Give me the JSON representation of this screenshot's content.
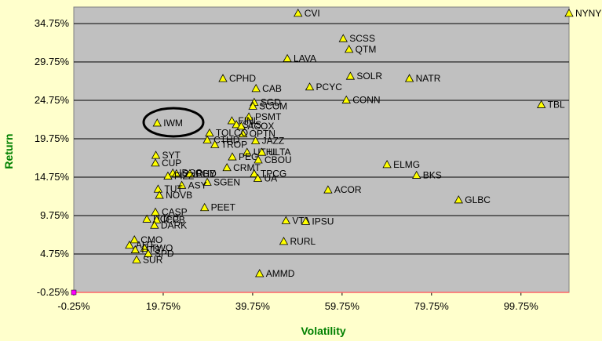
{
  "chart_data": {
    "type": "scatter",
    "title": "",
    "xlabel": "Volatility",
    "ylabel": "Return",
    "xlim": [
      -0.25,
      110.5
    ],
    "ylim": [
      -0.25,
      36.9
    ],
    "x_ticks": [
      "-0.25%",
      "19.75%",
      "39.75%",
      "59.75%",
      "79.75%",
      "99.75%"
    ],
    "y_ticks": [
      "-0.25%",
      "4.75%",
      "9.75%",
      "14.75%",
      "19.75%",
      "24.75%",
      "29.75%",
      "34.75%"
    ],
    "x_tick_values": [
      -0.25,
      19.75,
      39.75,
      59.75,
      79.75,
      99.75
    ],
    "y_tick_values": [
      -0.25,
      4.75,
      9.75,
      14.75,
      19.75,
      24.75,
      29.75,
      34.75
    ],
    "grid": true,
    "colors": {
      "plot_background": "#C0C0C0",
      "page_background": "#FFFFCC",
      "marker_fill": "#FFFF00",
      "marker_stroke": "#000000",
      "grid": "#000000",
      "axis_title": "#008000",
      "origin_marker": "#FF00FF",
      "zero_line": "#FF6666",
      "annotation_circle": "#000000"
    },
    "points": [
      {
        "label": "NYNY",
        "x": 110.5,
        "y": 36.1
      },
      {
        "label": "CVI",
        "x": 49.9,
        "y": 36.1
      },
      {
        "label": "SCSS",
        "x": 60.0,
        "y": 32.8
      },
      {
        "label": "QTM",
        "x": 61.3,
        "y": 31.4
      },
      {
        "label": "LAVA",
        "x": 47.5,
        "y": 30.2
      },
      {
        "label": "SOLR",
        "x": 61.6,
        "y": 27.9
      },
      {
        "label": "NATR",
        "x": 74.8,
        "y": 27.6
      },
      {
        "label": "CPHD",
        "x": 33.1,
        "y": 27.6
      },
      {
        "label": "CAB",
        "x": 40.5,
        "y": 26.3
      },
      {
        "label": "PCYC",
        "x": 52.5,
        "y": 26.5
      },
      {
        "label": "CONN",
        "x": 60.7,
        "y": 24.8
      },
      {
        "label": "TBL",
        "x": 104.3,
        "y": 24.2
      },
      {
        "label": "SGD",
        "x": 40.1,
        "y": 24.5
      },
      {
        "label": "SCOM",
        "x": 39.8,
        "y": 24.0
      },
      {
        "label": "PSMT",
        "x": 38.9,
        "y": 22.6
      },
      {
        "label": "FINL",
        "x": 35.1,
        "y": 22.1
      },
      {
        "label": "SYS",
        "x": 36.1,
        "y": 21.6
      },
      {
        "label": "IWM",
        "x": 18.4,
        "y": 21.8
      },
      {
        "label": "ACOX",
        "x": 37.2,
        "y": 21.4
      },
      {
        "label": "OPTN",
        "x": 37.6,
        "y": 20.4
      },
      {
        "label": "TOLCO",
        "x": 30.1,
        "y": 20.5
      },
      {
        "label": "CTHD",
        "x": 29.6,
        "y": 19.6
      },
      {
        "label": "TROP",
        "x": 31.3,
        "y": 19.0
      },
      {
        "label": "JAZZ",
        "x": 40.4,
        "y": 19.5
      },
      {
        "label": "UTHL",
        "x": 38.5,
        "y": 18.0
      },
      {
        "label": "ULTA",
        "x": 41.8,
        "y": 18.0
      },
      {
        "label": "PEG",
        "x": 35.2,
        "y": 17.4
      },
      {
        "label": "CBOU",
        "x": 41.0,
        "y": 17.0
      },
      {
        "label": "CRMT",
        "x": 34.0,
        "y": 16.0
      },
      {
        "label": "TPCG",
        "x": 40.1,
        "y": 15.2
      },
      {
        "label": "UA",
        "x": 40.9,
        "y": 14.6
      },
      {
        "label": "SGEN",
        "x": 29.6,
        "y": 14.1
      },
      {
        "label": "SYT",
        "x": 18.1,
        "y": 17.6
      },
      {
        "label": "CUP",
        "x": 18.0,
        "y": 16.6
      },
      {
        "label": "IDCC",
        "x": 21.9,
        "y": 15.3
      },
      {
        "label": "SHPGY",
        "x": 22.7,
        "y": 15.2
      },
      {
        "label": "RHD",
        "x": 25.7,
        "y": 15.2
      },
      {
        "label": "FIZZ",
        "x": 20.8,
        "y": 14.9
      },
      {
        "label": "ASY",
        "x": 23.9,
        "y": 13.7
      },
      {
        "label": "TUT",
        "x": 18.6,
        "y": 13.2
      },
      {
        "label": "NOVB",
        "x": 18.9,
        "y": 12.4
      },
      {
        "label": "ACOR",
        "x": 56.6,
        "y": 13.1
      },
      {
        "label": "ELMG",
        "x": 69.8,
        "y": 16.4
      },
      {
        "label": "BKS",
        "x": 76.4,
        "y": 15.0
      },
      {
        "label": "GLBC",
        "x": 85.8,
        "y": 11.8
      },
      {
        "label": "PEET",
        "x": 29.0,
        "y": 10.8
      },
      {
        "label": "CASP",
        "x": 18.0,
        "y": 10.2
      },
      {
        "label": "UCFC",
        "x": 16.1,
        "y": 9.3
      },
      {
        "label": "ICPB",
        "x": 18.3,
        "y": 9.2
      },
      {
        "label": "DARK",
        "x": 17.8,
        "y": 8.5
      },
      {
        "label": "VTA",
        "x": 47.2,
        "y": 9.1
      },
      {
        "label": "IPSU",
        "x": 51.6,
        "y": 9.0
      },
      {
        "label": "RURL",
        "x": 46.7,
        "y": 6.4
      },
      {
        "label": "CMO",
        "x": 13.3,
        "y": 6.6
      },
      {
        "label": "AHT",
        "x": 12.2,
        "y": 5.9
      },
      {
        "label": "TWO",
        "x": 15.6,
        "y": 5.5
      },
      {
        "label": "HTS",
        "x": 13.5,
        "y": 5.3
      },
      {
        "label": "SPD",
        "x": 16.4,
        "y": 4.8
      },
      {
        "label": "SUR",
        "x": 13.8,
        "y": 4.0
      },
      {
        "label": "AMMD",
        "x": 41.3,
        "y": 2.2
      }
    ]
  }
}
